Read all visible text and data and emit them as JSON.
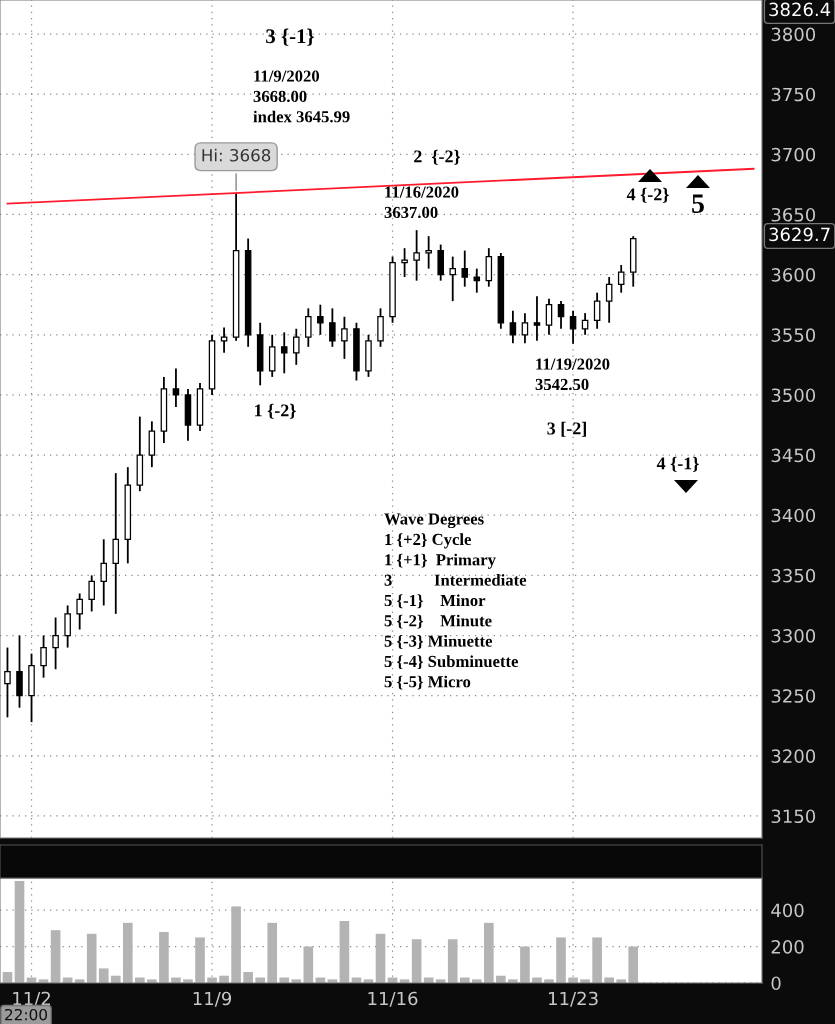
{
  "chart_data": [
    {
      "type": "candlestick",
      "categories": [
        null,
        null,
        null,
        null,
        null,
        null,
        null,
        null,
        null,
        null,
        null,
        null,
        null,
        null,
        null,
        null,
        null,
        null,
        null,
        null,
        null,
        null,
        null,
        null,
        null,
        null,
        null,
        null,
        null,
        null,
        null,
        null,
        null,
        null,
        null,
        null,
        null,
        null,
        null,
        null,
        null,
        null,
        null,
        null,
        null,
        null,
        null,
        null,
        null,
        null,
        null,
        null,
        null,
        null,
        null,
        null,
        null,
        null,
        null,
        null,
        null,
        null,
        null
      ],
      "ohlc": [
        [
          3260,
          3290,
          3232,
          3270
        ],
        [
          3270,
          3300,
          3240,
          3250
        ],
        [
          3250,
          3285,
          3228,
          3275
        ],
        [
          3275,
          3300,
          3265,
          3290
        ],
        [
          3290,
          3315,
          3272,
          3300
        ],
        [
          3300,
          3325,
          3290,
          3318
        ],
        [
          3318,
          3335,
          3305,
          3330
        ],
        [
          3330,
          3350,
          3320,
          3345
        ],
        [
          3345,
          3380,
          3325,
          3360
        ],
        [
          3360,
          3435,
          3318,
          3380
        ],
        [
          3380,
          3440,
          3360,
          3425
        ],
        [
          3425,
          3482,
          3420,
          3450
        ],
        [
          3450,
          3478,
          3440,
          3470
        ],
        [
          3470,
          3515,
          3460,
          3505
        ],
        [
          3505,
          3522,
          3490,
          3500
        ],
        [
          3500,
          3505,
          3462,
          3475
        ],
        [
          3475,
          3510,
          3470,
          3505
        ],
        [
          3505,
          3550,
          3500,
          3545
        ],
        [
          3545,
          3556,
          3535,
          3548
        ],
        [
          3548,
          3668,
          3545,
          3620
        ],
        [
          3620,
          3630,
          3540,
          3550
        ],
        [
          3550,
          3560,
          3508,
          3520
        ],
        [
          3520,
          3550,
          3515,
          3540
        ],
        [
          3540,
          3552,
          3518,
          3535
        ],
        [
          3535,
          3555,
          3525,
          3548
        ],
        [
          3548,
          3572,
          3540,
          3565
        ],
        [
          3565,
          3575,
          3550,
          3560
        ],
        [
          3560,
          3572,
          3540,
          3545
        ],
        [
          3545,
          3565,
          3530,
          3555
        ],
        [
          3555,
          3560,
          3512,
          3520
        ],
        [
          3520,
          3550,
          3515,
          3545
        ],
        [
          3545,
          3572,
          3540,
          3565
        ],
        [
          3565,
          3615,
          3560,
          3610
        ],
        [
          3610,
          3622,
          3598,
          3612
        ],
        [
          3612,
          3637,
          3595,
          3618
        ],
        [
          3618,
          3632,
          3605,
          3620
        ],
        [
          3620,
          3625,
          3595,
          3600
        ],
        [
          3600,
          3615,
          3578,
          3605
        ],
        [
          3605,
          3620,
          3590,
          3598
        ],
        [
          3598,
          3605,
          3585,
          3595
        ],
        [
          3595,
          3622,
          3590,
          3615
        ],
        [
          3615,
          3618,
          3555,
          3560
        ],
        [
          3560,
          3570,
          3543,
          3550
        ],
        [
          3550,
          3568,
          3543,
          3560
        ],
        [
          3560,
          3582,
          3545,
          3558
        ],
        [
          3558,
          3580,
          3550,
          3575
        ],
        [
          3575,
          3578,
          3555,
          3565
        ],
        [
          3565,
          3570,
          3542.5,
          3555
        ],
        [
          3555,
          3568,
          3550,
          3562
        ],
        [
          3562,
          3585,
          3555,
          3578
        ],
        [
          3578,
          3598,
          3560,
          3592
        ],
        [
          3592,
          3608,
          3585,
          3602
        ],
        [
          3602,
          3632,
          3590,
          3630
        ],
        null,
        null,
        null,
        null,
        null,
        null,
        null,
        null,
        null,
        null
      ],
      "color": "#000000",
      "series": [
        {
          "type": "line",
          "color": "#ff1a2e",
          "values": [
            3659,
            null,
            null,
            null,
            null,
            null,
            null,
            null,
            null,
            null,
            null,
            null,
            null,
            null,
            null,
            null,
            null,
            null,
            null,
            null,
            null,
            null,
            null,
            null,
            null,
            null,
            null,
            null,
            null,
            null,
            null,
            null,
            null,
            null,
            null,
            null,
            null,
            null,
            null,
            null,
            null,
            null,
            null,
            null,
            null,
            null,
            null,
            null,
            null,
            null,
            null,
            null,
            null,
            null,
            null,
            null,
            null,
            null,
            null,
            null,
            null,
            null,
            3688
          ]
        }
      ],
      "ylim": [
        3131.7,
        3828.3
      ],
      "yticks": [
        3150,
        3200,
        3250,
        3300,
        3350,
        3400,
        3450,
        3500,
        3550,
        3600,
        3650,
        3700,
        3750,
        3800
      ],
      "grid": true,
      "tick_labels": "y",
      "annotations": [
        "3 {-1}",
        "11/9/2020\n3668.00\nindex 3645.99",
        {
          "text": "Hi: 3668",
          "y": 3668
        },
        "2  {-2}",
        "11/16/2020\n3637.00",
        "4 {-2}",
        "5",
        "1 {-2}",
        "11/19/2020\n3542.50",
        "3 [-2]",
        "4 {-1}",
        "Wave Degrees\n1 {+2} Cycle\n1 {+1}  Primary\n3          Intermediate\n5 {-1}    Minor\n5 {-2}    Minute\n5 {-3} Minuette\n5 {-4} Subminuette\n5 {-5} Micro",
        "3629.7",
        "3826.4"
      ]
    },
    {
      "type": "bar",
      "categories": [
        null,
        null,
        "11/2",
        null,
        null,
        null,
        null,
        null,
        null,
        null,
        null,
        null,
        null,
        null,
        null,
        null,
        null,
        "11/9",
        null,
        null,
        null,
        null,
        null,
        null,
        null,
        null,
        null,
        null,
        null,
        null,
        null,
        null,
        "11/16",
        null,
        null,
        null,
        null,
        null,
        null,
        null,
        null,
        null,
        null,
        null,
        null,
        null,
        null,
        "11/23",
        null,
        null,
        null,
        null,
        null,
        null,
        null,
        null,
        null,
        null,
        null,
        null,
        null,
        null,
        null
      ],
      "values": [
        60,
        560,
        30,
        20,
        290,
        30,
        20,
        270,
        80,
        40,
        330,
        30,
        20,
        280,
        30,
        20,
        250,
        30,
        40,
        420,
        60,
        30,
        330,
        30,
        20,
        200,
        30,
        20,
        340,
        30,
        20,
        270,
        30,
        20,
        240,
        30,
        20,
        240,
        30,
        20,
        330,
        40,
        20,
        200,
        30,
        20,
        250,
        30,
        20,
        250,
        30,
        20,
        200,
        null,
        null,
        null,
        null,
        null,
        null,
        null,
        null,
        null,
        null
      ],
      "color": "#b3b3b3",
      "ylim": [
        0,
        576
      ],
      "yticks": [
        0,
        200,
        400
      ],
      "grid": true,
      "annotations": [
        "22:00"
      ]
    }
  ]
}
